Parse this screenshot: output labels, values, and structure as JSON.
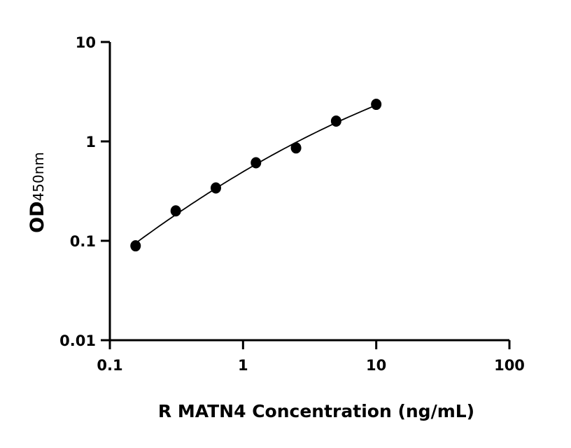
{
  "chart_data": {
    "type": "scatter",
    "xlabel": "R MATN4 Concentration (ng/mL)",
    "ylabel": "OD",
    "ylabel_subscript": "450nm",
    "xscale": "log",
    "yscale": "log",
    "xlim": [
      0.1,
      100
    ],
    "ylim": [
      0.01,
      10
    ],
    "xticks": [
      "0.1",
      "1",
      "10",
      "100"
    ],
    "yticks": [
      "0.01",
      "0.1",
      "1",
      "10"
    ],
    "grid": false,
    "fit_curve": true,
    "x": [
      0.156,
      0.3125,
      0.625,
      1.25,
      2.5,
      5,
      10
    ],
    "y": [
      0.089,
      0.2,
      0.34,
      0.61,
      0.86,
      1.6,
      2.36
    ],
    "colors": {
      "points": "#000000",
      "line": "#000000"
    }
  }
}
